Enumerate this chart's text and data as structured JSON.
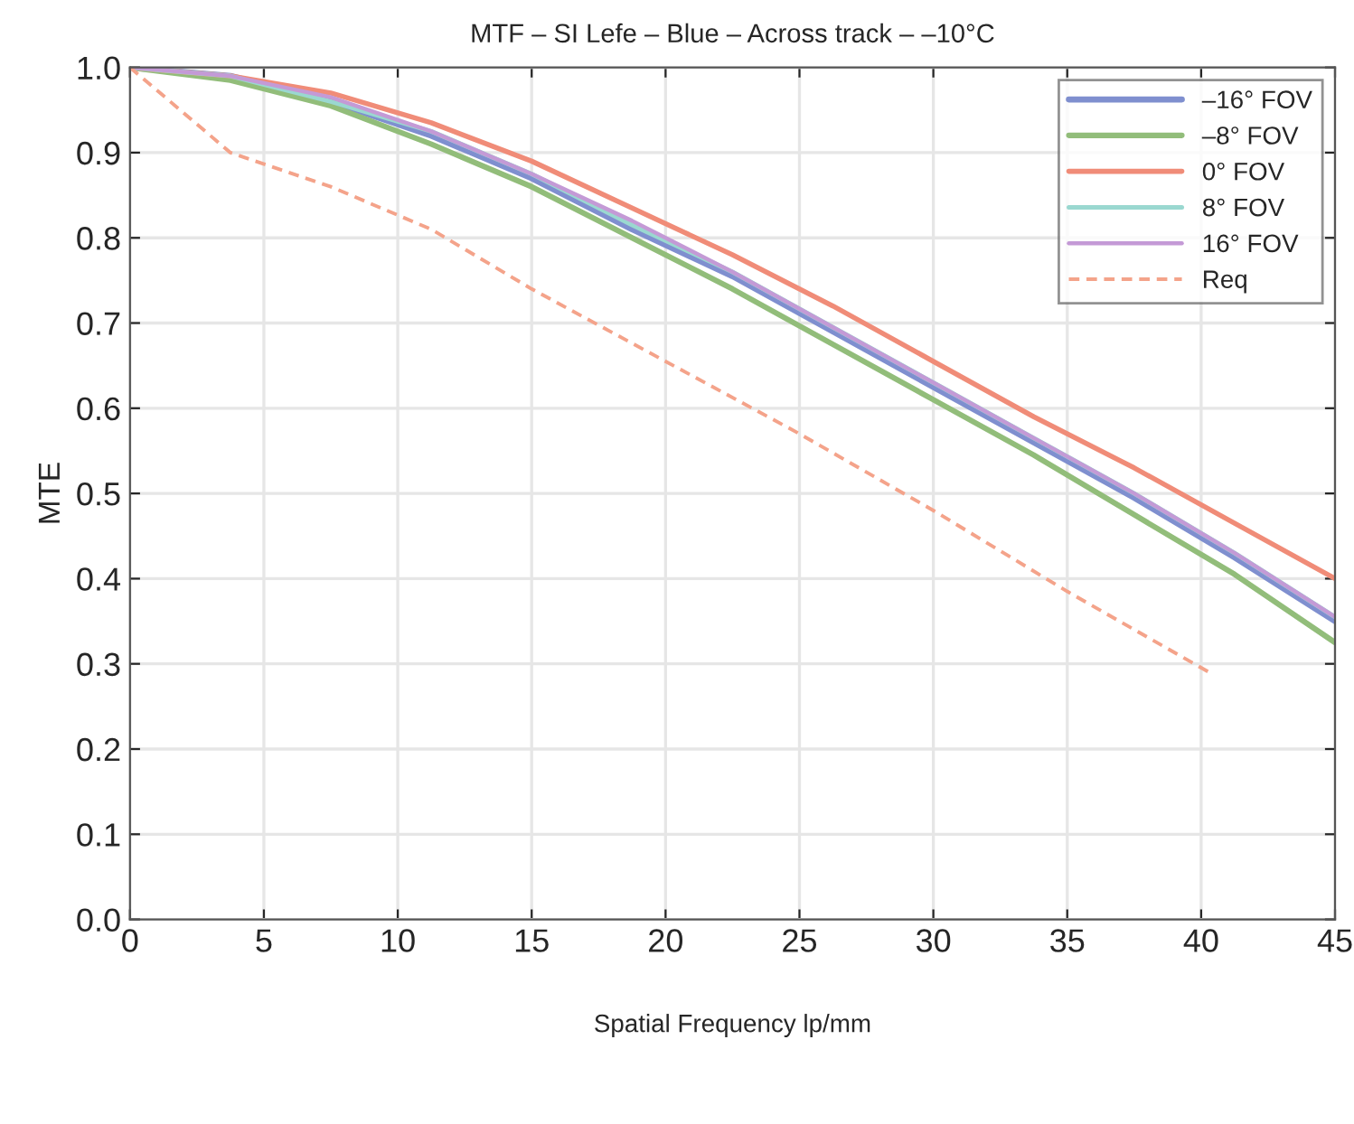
{
  "chart_data": {
    "type": "line",
    "title": "MTF – SI Lefe – Blue – Across track – –10°C",
    "xlabel": "Spatial Frequency lp/mm",
    "ylabel": "MTE",
    "xlim": [
      0,
      45
    ],
    "xticks": [
      0,
      5,
      10,
      15,
      20,
      25,
      30,
      35,
      40,
      45
    ],
    "ylim": [
      0,
      1
    ],
    "yticks": [
      {
        "value": 0,
        "label": "0.0"
      },
      {
        "value": 0.1,
        "label": "0.1"
      },
      {
        "value": 0.2,
        "label": "0.2"
      },
      {
        "value": 0.3,
        "label": "0.3"
      },
      {
        "value": 0.4,
        "label": "0.4"
      },
      {
        "value": 0.5,
        "label": "0.5"
      },
      {
        "value": 0.6,
        "label": "0.6"
      },
      {
        "value": 0.7,
        "label": "0.7"
      },
      {
        "value": 0.8,
        "label": "0.8"
      },
      {
        "value": 0.9,
        "label": "0.9"
      },
      {
        "value": 1,
        "label": "1.0"
      }
    ],
    "x": [
      0,
      3.75,
      7.5,
      11.25,
      15,
      18.75,
      22.5,
      26.25,
      30,
      33.75,
      37.5,
      41.25,
      45
    ],
    "grid": true,
    "legend": "top right",
    "marker": "none",
    "series": [
      {
        "name": "–16° FOV",
        "color": "#7f8fcf",
        "values": [
          1.0,
          0.99,
          0.96,
          0.92,
          0.87,
          0.81,
          0.755,
          0.69,
          0.625,
          0.56,
          0.495,
          0.425,
          0.35
        ]
      },
      {
        "name": "–8° FOV",
        "color": "#92bd7a",
        "values": [
          1.0,
          0.985,
          0.955,
          0.91,
          0.86,
          0.8,
          0.74,
          0.675,
          0.61,
          0.545,
          0.475,
          0.405,
          0.325
        ]
      },
      {
        "name": "0° FOV",
        "color": "#f08c78",
        "values": [
          1.0,
          0.99,
          0.97,
          0.935,
          0.89,
          0.835,
          0.78,
          0.72,
          0.655,
          0.59,
          0.53,
          0.465,
          0.4
        ]
      },
      {
        "name": "8° FOV",
        "color": "#9ad8d0",
        "values": [
          1.0,
          0.99,
          0.96,
          0.925,
          0.875,
          0.815,
          0.76,
          0.695,
          0.63,
          0.565,
          0.5,
          0.43,
          0.355
        ]
      },
      {
        "name": "16° FOV",
        "color": "#c49ad6",
        "values": [
          1.0,
          0.99,
          0.965,
          0.925,
          0.875,
          0.82,
          0.76,
          0.695,
          0.63,
          0.565,
          0.5,
          0.43,
          0.355
        ]
      },
      {
        "name": "Req",
        "color": "#f4a38a",
        "line_style": "dashed",
        "x": [
          0,
          3.75,
          7.5,
          11.25,
          15,
          20,
          25,
          30,
          35,
          40.3
        ],
        "values": [
          1.0,
          0.9,
          0.86,
          0.81,
          0.74,
          0.655,
          0.57,
          0.48,
          0.385,
          0.29
        ]
      }
    ]
  }
}
